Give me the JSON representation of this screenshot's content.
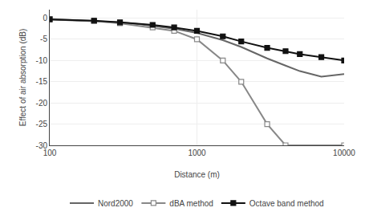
{
  "chart_data": {
    "type": "line",
    "xlabel": "Distance (m)",
    "ylabel": "Effect of air absorption (dB)",
    "log": "x",
    "xlim": [
      100,
      10000
    ],
    "ylim": [
      -30,
      2
    ],
    "xticks": [
      100,
      1000,
      10000
    ],
    "yticks": [
      0,
      -5,
      -10,
      -15,
      -20,
      -25,
      -30
    ],
    "grid": true,
    "legend": "bottom",
    "series": [
      {
        "name": "Nord2000",
        "color": "#666666",
        "marker": "none",
        "line_style": "solid",
        "x": [
          100,
          200,
          300,
          400,
          500,
          700,
          1000,
          1500,
          2000,
          3000,
          4000,
          5000,
          7000,
          10000
        ],
        "values": [
          -0.3,
          -0.7,
          -1.0,
          -1.4,
          -1.8,
          -2.5,
          -3.5,
          -5.2,
          -6.8,
          -9.5,
          -11.2,
          -12.5,
          -13.8,
          -13.2
        ]
      },
      {
        "name": "dBA method",
        "color": "#888888",
        "marker": "square-open",
        "line_style": "solid",
        "x": [
          100,
          200,
          300,
          500,
          700,
          1000,
          1500,
          2000,
          3000,
          4000,
          10000
        ],
        "values": [
          -0.2,
          -0.7,
          -1.2,
          -2.2,
          -3.0,
          -5.0,
          -10.0,
          -15.0,
          -25.0,
          -30.0,
          -30.0
        ]
      },
      {
        "name": "Octave band method",
        "color": "#111111",
        "marker": "square",
        "line_style": "solid",
        "x": [
          100,
          200,
          300,
          500,
          700,
          1000,
          1500,
          2000,
          3000,
          4000,
          5000,
          7000,
          10000
        ],
        "values": [
          -0.3,
          -0.6,
          -1.0,
          -1.6,
          -2.2,
          -3.0,
          -4.3,
          -5.5,
          -7.0,
          -7.8,
          -8.5,
          -9.2,
          -10.0
        ]
      }
    ]
  }
}
